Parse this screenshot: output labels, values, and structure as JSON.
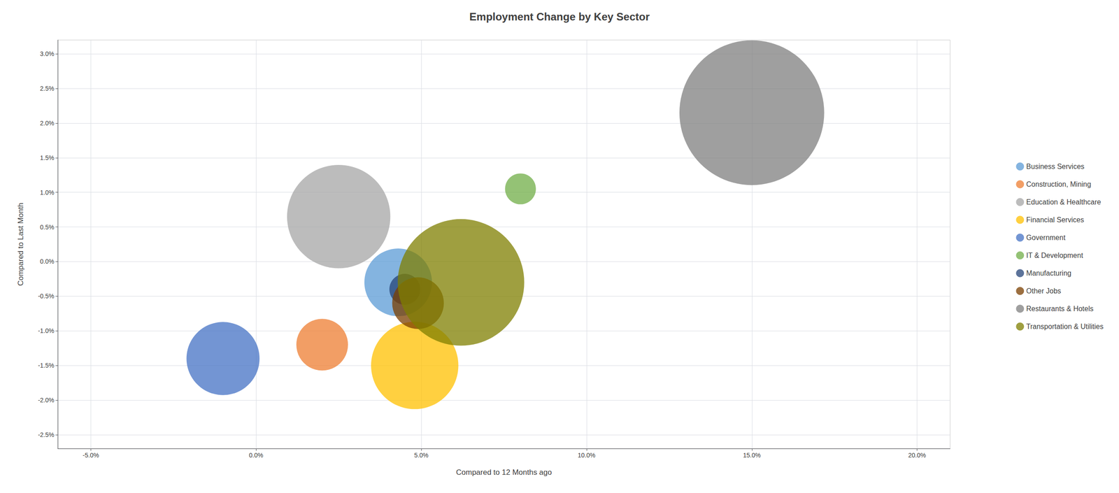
{
  "chart_data": {
    "type": "scatter",
    "title": "Employment Change by Key Sector",
    "x_label": "Compared to 12 Months ago",
    "y_label": "Compared to Last Month",
    "xlim": [
      -0.06,
      0.21
    ],
    "ylim": [
      -0.027,
      0.032
    ],
    "xticks": [
      {
        "value": -0.05,
        "label": "-5.0%"
      },
      {
        "value": 0,
        "label": "0.0%"
      },
      {
        "value": 0.05,
        "label": "5.0%"
      },
      {
        "value": 0.1,
        "label": "10.0%"
      },
      {
        "value": 0.15,
        "label": "15.0%"
      },
      {
        "value": 0.2,
        "label": "20.0%"
      }
    ],
    "yticks": [
      {
        "value": -0.025,
        "label": "-2.5%"
      },
      {
        "value": -0.02,
        "label": "-2.0%"
      },
      {
        "value": -0.015,
        "label": "-1.5%"
      },
      {
        "value": -0.01,
        "label": "-1.0%"
      },
      {
        "value": -0.005,
        "label": "-0.5%"
      },
      {
        "value": 0,
        "label": "0.0%"
      },
      {
        "value": 0.005,
        "label": "0.5%"
      },
      {
        "value": 0.01,
        "label": "1.0%"
      },
      {
        "value": 0.015,
        "label": "1.5%"
      },
      {
        "value": 0.02,
        "label": "2.0%"
      },
      {
        "value": 0.025,
        "label": "2.5%"
      },
      {
        "value": 0.03,
        "label": "3.0%"
      }
    ],
    "grid": true,
    "legend": "right",
    "series": [
      {
        "name": "Business Services",
        "color": "#5b9bd5",
        "x": [
          0.043
        ],
        "y": [
          -0.003
        ],
        "size": [
          12000
        ]
      },
      {
        "name": "Construction, Mining",
        "color": "#ed7d31",
        "x": [
          0.02
        ],
        "y": [
          -0.012
        ],
        "size": [
          7000
        ]
      },
      {
        "name": "Education & Healthcare",
        "color": "#a5a5a5",
        "x": [
          0.025
        ],
        "y": [
          0.0065
        ],
        "size": [
          28000
        ]
      },
      {
        "name": "Financial Services",
        "color": "#ffc000",
        "x": [
          0.048
        ],
        "y": [
          -0.015
        ],
        "size": [
          20000
        ]
      },
      {
        "name": "Government",
        "color": "#4472c4",
        "x": [
          -0.01
        ],
        "y": [
          -0.014
        ],
        "size": [
          14000
        ]
      },
      {
        "name": "IT & Development",
        "color": "#70ad47",
        "x": [
          0.08
        ],
        "y": [
          0.0105
        ],
        "size": [
          2500
        ]
      },
      {
        "name": "Manufacturing",
        "color": "#264478",
        "x": [
          0.045
        ],
        "y": [
          -0.004
        ],
        "size": [
          2500
        ]
      },
      {
        "name": "Other Jobs",
        "color": "#7b3f00",
        "x": [
          0.049
        ],
        "y": [
          -0.006
        ],
        "size": [
          7000
        ]
      },
      {
        "name": "Restaurants & Hotels",
        "color": "#7f7f7f",
        "x": [
          0.15
        ],
        "y": [
          0.0215
        ],
        "size": [
          55000
        ]
      },
      {
        "name": "Transportation & Utilities",
        "color": "#7f7f00",
        "x": [
          0.062
        ],
        "y": [
          -0.003
        ],
        "size": [
          42000
        ]
      }
    ]
  }
}
